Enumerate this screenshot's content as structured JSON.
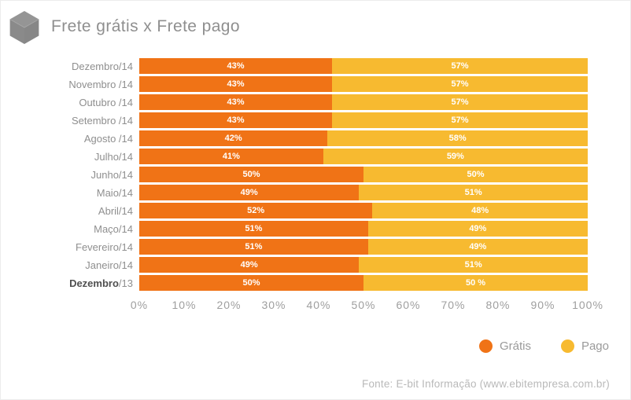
{
  "header": {
    "title": "Frete grátis x Frete pago",
    "icon": "cube-icon",
    "icon_color": "#8c8c8c"
  },
  "chart_data": {
    "type": "bar",
    "orientation": "horizontal",
    "stacked": true,
    "title": "Frete grátis x Frete pago",
    "categories": [
      "Dezembro/14",
      "Novembro /14",
      "Outubro /14",
      "Setembro /14",
      "Agosto /14",
      "Julho/14",
      "Junho/14",
      "Maio/14",
      "Abril/14",
      "Maço/14",
      "Fevereiro/14",
      "Janeiro/14",
      "Dezembro/13"
    ],
    "bold_category_index": 12,
    "series": [
      {
        "name": "Grátis",
        "color": "#F07316",
        "values": [
          43,
          43,
          43,
          43,
          42,
          41,
          50,
          49,
          52,
          51,
          51,
          49,
          50
        ]
      },
      {
        "name": "Pago",
        "color": "#F7BA30",
        "values": [
          57,
          57,
          57,
          57,
          58,
          59,
          50,
          51,
          48,
          49,
          49,
          51,
          50
        ]
      }
    ],
    "bar_labels": {
      "gratis": [
        "43%",
        "43%",
        "43%",
        "43%",
        "42%",
        "41%",
        "50%",
        "49%",
        "52%",
        "51%",
        "51%",
        "49%",
        "50%"
      ],
      "pago": [
        "57%",
        "57%",
        "57%",
        "57%",
        "58%",
        "59%",
        "50%",
        "51%",
        "48%",
        "49%",
        "49%",
        "51%",
        "50 %"
      ]
    },
    "x_ticks": [
      "0%",
      "10%",
      "20%",
      "30%",
      "40%",
      "50%",
      "60%",
      "70%",
      "80%",
      "90%",
      "100%"
    ],
    "xlim": [
      0,
      100
    ],
    "grid": false,
    "legend_position": "bottom-right",
    "legend": [
      {
        "label": "Grátis",
        "color": "#F07316"
      },
      {
        "label": "Pago",
        "color": "#F7BA30"
      }
    ]
  },
  "footer": {
    "source": "Fonte: E-bit Informação (www.ebitempresa.com.br)"
  }
}
